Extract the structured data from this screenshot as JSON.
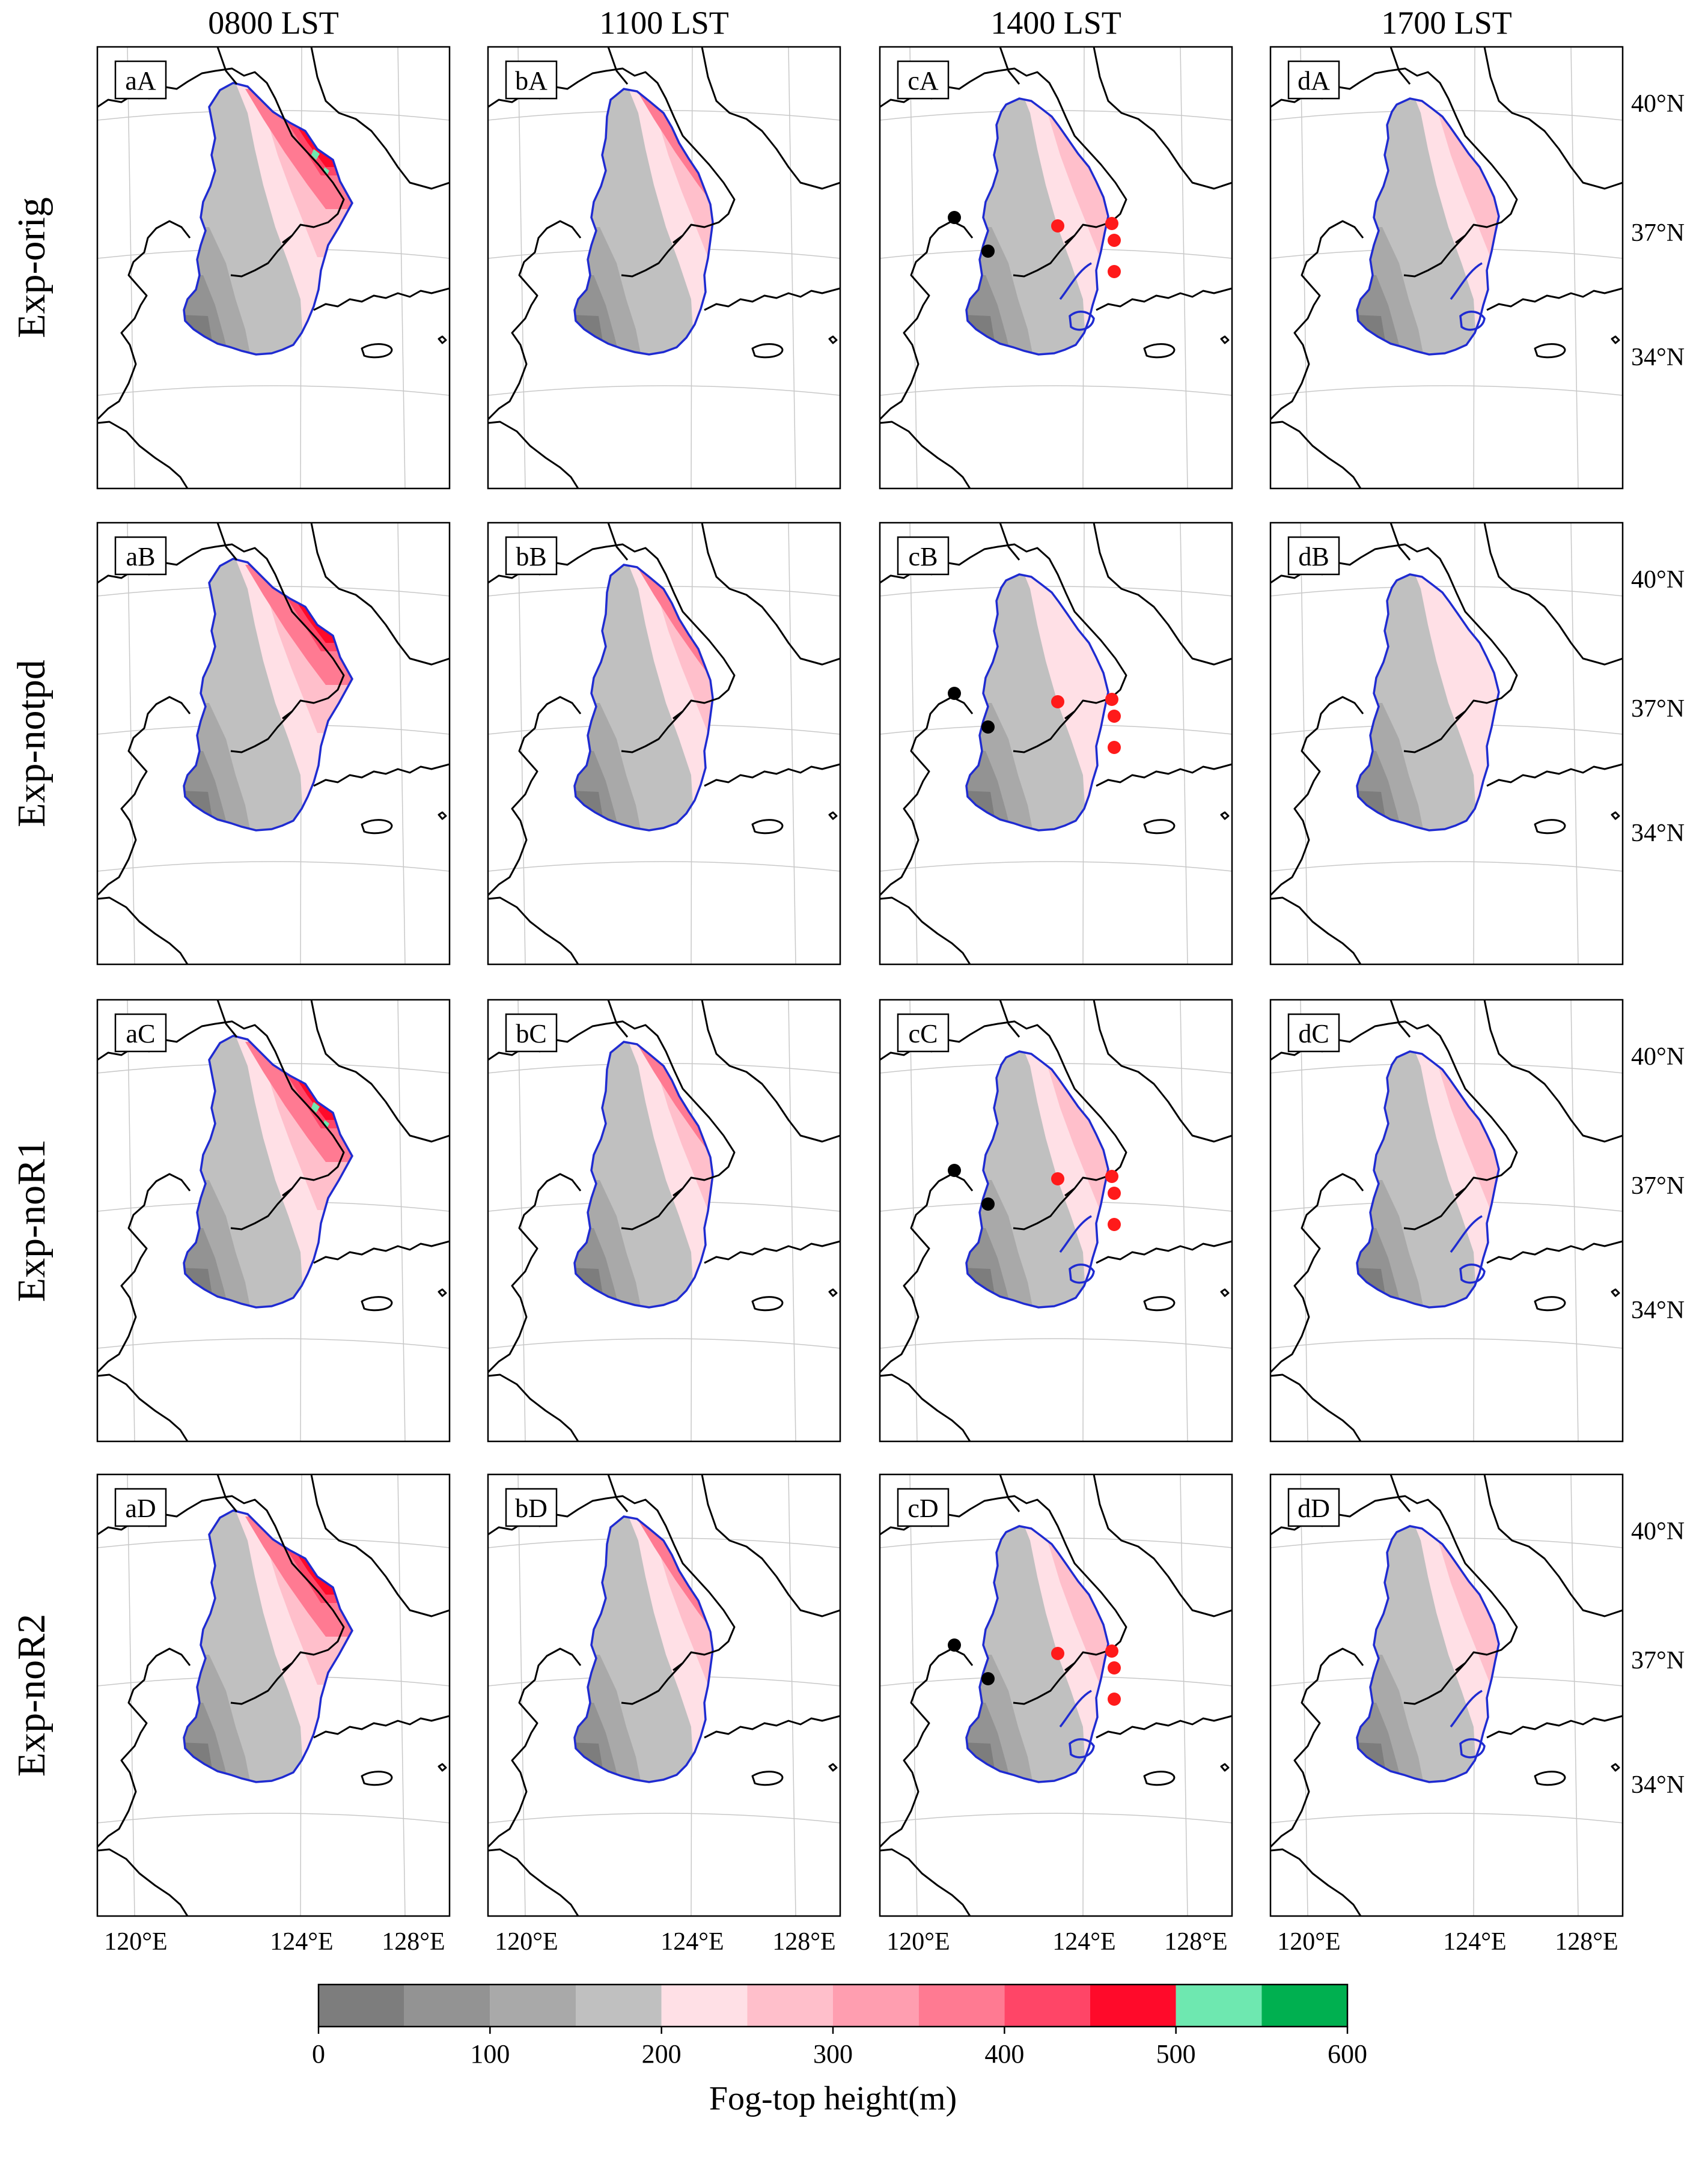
{
  "columns": [
    "0800 LST",
    "1100 LST",
    "1400 LST",
    "1700 LST"
  ],
  "rows": [
    "Exp-orig",
    "Exp-notpd",
    "Exp-noR1",
    "Exp-noR2"
  ],
  "panel_labels": [
    [
      "aA",
      "bA",
      "cA",
      "dA"
    ],
    [
      "aB",
      "bB",
      "cB",
      "dB"
    ],
    [
      "aC",
      "bC",
      "cC",
      "dC"
    ],
    [
      "aD",
      "bD",
      "cD",
      "dD"
    ]
  ],
  "lat_labels": [
    "40°N",
    "37°N",
    "34°N"
  ],
  "lon_labels": [
    "120°E",
    "124°E",
    "128°E"
  ],
  "colorbar": {
    "title": "Fog-top height(m)",
    "ticks": [
      "0",
      "100",
      "200",
      "300",
      "400",
      "500",
      "600"
    ],
    "bins": [
      0,
      50,
      100,
      150,
      200,
      250,
      300,
      350,
      400,
      450,
      500,
      550,
      600
    ],
    "colors": [
      "#7d7d7d",
      "#939393",
      "#a9a9a9",
      "#c0c0c0",
      "#ffe0e6",
      "#ffbfcb",
      "#ff9eb0",
      "#ff7a92",
      "#ff4567",
      "#ff0a2a",
      "#6ee8b0",
      "#00b050"
    ]
  },
  "colors": {
    "coast": "#000000",
    "fog_outline": "#1f2bd1",
    "marker_red": "#ff1a1a",
    "marker_black": "#000000"
  }
}
